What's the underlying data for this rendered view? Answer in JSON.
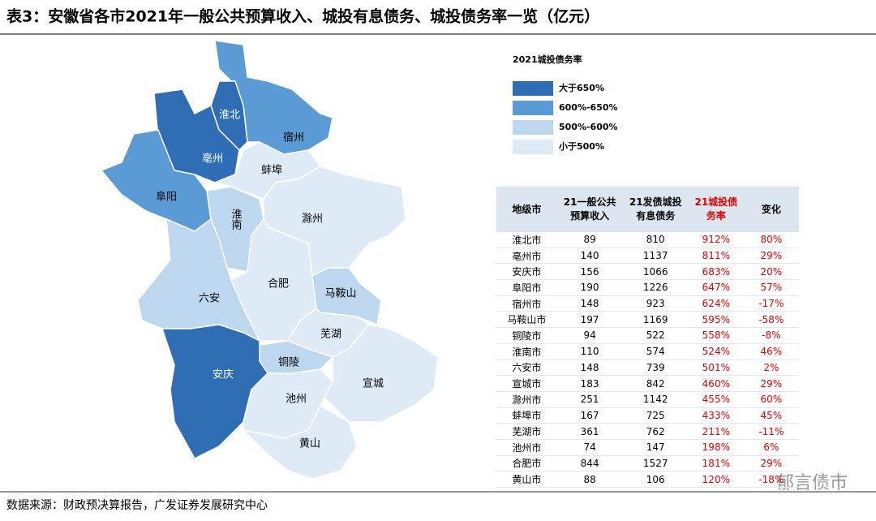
{
  "title": "表3：安徽省各市2021年一般公共预算收入、城投有息债务、城投债务率一览（亿元）",
  "legend": {
    "title": "2021城投债务率",
    "items": [
      "大于650%",
      "600%-650%",
      "500%-600%",
      "小于500%"
    ]
  },
  "regions": [
    "淮北",
    "亳州",
    "宿州",
    "蚌埠",
    "阜阳",
    "淮南",
    "滁州",
    "合肥",
    "马鞍山",
    "六安",
    "芜湖",
    "铜陵",
    "安庆",
    "池州",
    "宣城",
    "黄山"
  ],
  "table": {
    "header": [
      "地级市",
      "21一般公共预算收入",
      "21发债城投有息债务",
      "21城投债务率",
      "变化"
    ],
    "rows": [
      [
        "淮北市",
        "89",
        "810",
        "912%",
        "80%"
      ],
      [
        "亳州市",
        "140",
        "1137",
        "811%",
        "29%"
      ],
      [
        "安庆市",
        "156",
        "1066",
        "683%",
        "20%"
      ],
      [
        "阜阳市",
        "190",
        "1226",
        "647%",
        "57%"
      ],
      [
        "宿州市",
        "148",
        "923",
        "624%",
        "-17%"
      ],
      [
        "马鞍山市",
        "197",
        "1169",
        "595%",
        "-58%"
      ],
      [
        "铜陵市",
        "94",
        "522",
        "558%",
        "-8%"
      ],
      [
        "淮南市",
        "110",
        "574",
        "524%",
        "46%"
      ],
      [
        "六安市",
        "148",
        "739",
        "501%",
        "2%"
      ],
      [
        "宣城市",
        "183",
        "842",
        "460%",
        "29%"
      ],
      [
        "滁州市",
        "251",
        "1142",
        "455%",
        "60%"
      ],
      [
        "蚌埠市",
        "167",
        "725",
        "433%",
        "45%"
      ],
      [
        "芜湖市",
        "361",
        "762",
        "211%",
        "-11%"
      ],
      [
        "池州市",
        "74",
        "147",
        "198%",
        "6%"
      ],
      [
        "合肥市",
        "844",
        "1527",
        "181%",
        "29%"
      ],
      [
        "黄山市",
        "88",
        "106",
        "120%",
        "-18%"
      ]
    ]
  },
  "source": "数据来源：财政预决算报告，广发证券发展研究中心",
  "watermark": "郁言债市"
}
